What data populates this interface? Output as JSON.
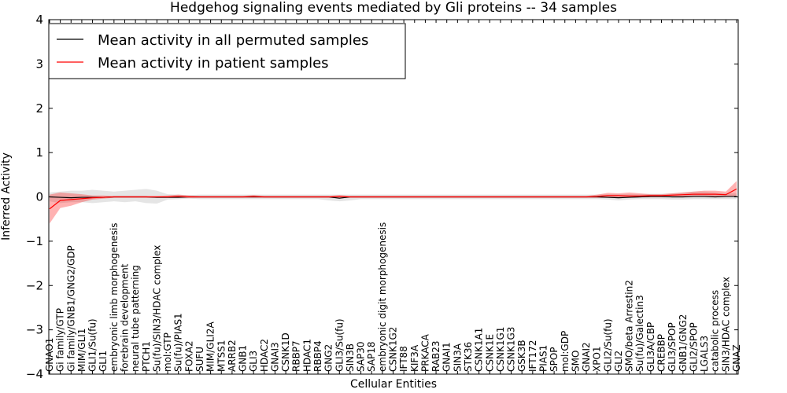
{
  "chart_data": {
    "type": "line",
    "title": "Hedgehog signaling events mediated by Gli proteins -- 34 samples",
    "xlabel": "Cellular Entities",
    "ylabel": "Inferred Activity",
    "ylim": [
      -4,
      4
    ],
    "yticks": [
      "4",
      "3",
      "2",
      "1",
      "0",
      "−1",
      "−2",
      "−3",
      "−4"
    ],
    "ytick_values": [
      4,
      3,
      2,
      1,
      0,
      -1,
      -2,
      -3,
      -4
    ],
    "legend_position": "top-left",
    "categories": [
      "GNAO1",
      "Gi family/GTP",
      "Gi family/GNB1/GNG2/GDP",
      "MIM/GLI1",
      "GLI1/Su(fu)",
      "GLI1",
      "embryonic limb morphogenesis",
      "forebrain development",
      "neural tube patterning",
      "PTCH1",
      "Su(fu)/SIN3/HDAC complex",
      "mol:GTP",
      "Su(fu)/PIAS1",
      "FOXA2",
      "SUFU",
      "MIM/GLI2A",
      "MTSS1",
      "ARRB2",
      "GNB1",
      "GLI3",
      "HDAC2",
      "GNAI3",
      "CSNK1D",
      "RBBP7",
      "HDAC1",
      "RBBP4",
      "GNG2",
      "GLI3/Su(fu)",
      "SIN3B",
      "SAP30",
      "SAP18",
      "embryonic digit morphogenesis",
      "CSNK1G2",
      "IFT88",
      "KIF3A",
      "PRKACA",
      "RAB23",
      "GNAI1",
      "SIN3A",
      "STK36",
      "CSNK1A1",
      "CSNK1E",
      "CSNK1G1",
      "CSNK1G3",
      "GSK3B",
      "IFT172",
      "PIAS1",
      "SPOP",
      "mol:GDP",
      "SMO",
      "GNAI2",
      "XPO1",
      "GLI2/Su(fu)",
      "GLI2",
      "SMO/beta Arrestin2",
      "Su(fu)/Galectin3",
      "GLI3A/CBP",
      "CREBBP",
      "GLI3/SPOP",
      "GNB1/GNG2",
      "GLI2/SPOP",
      "LGALS3",
      "catabolic process",
      "SIN3/HDAC complex",
      "GNAZ"
    ],
    "series": [
      {
        "name": "Mean activity in all permuted samples",
        "color": "#000000",
        "values": [
          0.0,
          -0.01,
          -0.02,
          -0.01,
          -0.01,
          -0.01,
          0.0,
          0.0,
          0.0,
          0.0,
          -0.01,
          -0.01,
          -0.01,
          0.0,
          0.0,
          0.0,
          0.0,
          0.0,
          0.0,
          0.0,
          0.0,
          0.0,
          0.0,
          0.0,
          0.0,
          0.0,
          0.0,
          -0.03,
          0.0,
          0.0,
          0.0,
          0.0,
          0.0,
          0.0,
          0.0,
          0.0,
          0.0,
          0.0,
          0.0,
          0.0,
          0.0,
          0.0,
          0.0,
          0.0,
          0.0,
          0.0,
          0.0,
          0.0,
          0.0,
          0.0,
          0.0,
          0.0,
          -0.01,
          -0.02,
          -0.01,
          0.0,
          0.01,
          0.01,
          0.0,
          0.0,
          0.01,
          0.01,
          0.0,
          0.01,
          0.01
        ],
        "band_lower": [
          -0.1,
          -0.14,
          -0.12,
          -0.12,
          -0.14,
          -0.12,
          -0.1,
          -0.12,
          -0.1,
          -0.14,
          -0.15,
          -0.06,
          -0.05,
          -0.04,
          -0.05,
          -0.05,
          -0.05,
          -0.05,
          -0.05,
          -0.05,
          -0.05,
          -0.05,
          -0.05,
          -0.05,
          -0.05,
          -0.05,
          -0.08,
          -0.1,
          -0.08,
          -0.05,
          -0.05,
          -0.05,
          -0.05,
          -0.05,
          -0.05,
          -0.05,
          -0.05,
          -0.05,
          -0.05,
          -0.05,
          -0.05,
          -0.05,
          -0.05,
          -0.05,
          -0.05,
          -0.05,
          -0.05,
          -0.05,
          -0.05,
          -0.05,
          -0.05,
          -0.05,
          -0.06,
          -0.08,
          -0.06,
          -0.05,
          -0.05,
          -0.05,
          -0.06,
          -0.06,
          -0.05,
          -0.05,
          -0.05,
          -0.05,
          -0.05
        ],
        "band_upper": [
          0.1,
          0.12,
          0.14,
          0.14,
          0.16,
          0.14,
          0.12,
          0.14,
          0.16,
          0.18,
          0.14,
          0.06,
          0.05,
          0.04,
          0.05,
          0.05,
          0.05,
          0.05,
          0.05,
          0.05,
          0.05,
          0.05,
          0.05,
          0.05,
          0.05,
          0.05,
          0.05,
          0.05,
          0.05,
          0.05,
          0.05,
          0.05,
          0.05,
          0.05,
          0.05,
          0.05,
          0.05,
          0.05,
          0.05,
          0.05,
          0.05,
          0.05,
          0.05,
          0.05,
          0.05,
          0.05,
          0.05,
          0.05,
          0.05,
          0.05,
          0.05,
          0.05,
          0.06,
          0.06,
          0.06,
          0.06,
          0.07,
          0.07,
          0.08,
          0.1,
          0.12,
          0.12,
          0.1,
          0.08,
          0.08
        ]
      },
      {
        "name": "Mean activity in patient samples",
        "color": "#ff0000",
        "values": [
          -0.27,
          -0.08,
          -0.06,
          -0.04,
          -0.02,
          -0.01,
          0.0,
          0.0,
          0.0,
          0.0,
          0.0,
          0.0,
          0.01,
          0.0,
          0.0,
          0.0,
          0.0,
          0.0,
          0.0,
          0.01,
          0.0,
          0.0,
          0.0,
          0.0,
          0.0,
          0.0,
          0.0,
          0.01,
          0.0,
          0.0,
          0.0,
          0.0,
          0.0,
          0.0,
          0.0,
          0.0,
          0.0,
          0.0,
          0.0,
          0.0,
          0.0,
          0.0,
          0.0,
          0.0,
          0.0,
          0.0,
          0.0,
          0.0,
          0.0,
          0.0,
          0.0,
          0.01,
          0.03,
          0.03,
          0.02,
          0.02,
          0.03,
          0.03,
          0.04,
          0.05,
          0.06,
          0.06,
          0.06,
          0.05,
          0.18
        ],
        "band_lower": [
          -0.6,
          -0.25,
          -0.2,
          -0.12,
          -0.06,
          -0.04,
          -0.02,
          -0.02,
          -0.02,
          -0.02,
          -0.02,
          -0.02,
          -0.02,
          -0.02,
          -0.02,
          -0.02,
          -0.02,
          -0.02,
          -0.02,
          -0.02,
          -0.02,
          -0.02,
          -0.02,
          -0.02,
          -0.02,
          -0.02,
          -0.02,
          -0.02,
          -0.02,
          -0.02,
          -0.02,
          -0.02,
          -0.02,
          -0.02,
          -0.02,
          -0.02,
          -0.02,
          -0.02,
          -0.02,
          -0.02,
          -0.02,
          -0.02,
          -0.02,
          -0.02,
          -0.02,
          -0.02,
          -0.02,
          -0.02,
          -0.02,
          -0.02,
          -0.02,
          -0.02,
          -0.02,
          -0.02,
          -0.02,
          -0.01,
          -0.01,
          -0.01,
          0.0,
          0.0,
          0.0,
          0.0,
          0.0,
          0.0,
          0.02
        ],
        "band_upper": [
          0.05,
          0.1,
          0.08,
          0.06,
          0.03,
          0.03,
          0.02,
          0.02,
          0.02,
          0.02,
          0.02,
          0.03,
          0.05,
          0.03,
          0.02,
          0.02,
          0.02,
          0.02,
          0.02,
          0.04,
          0.02,
          0.02,
          0.02,
          0.02,
          0.02,
          0.02,
          0.02,
          0.04,
          0.02,
          0.02,
          0.02,
          0.02,
          0.02,
          0.02,
          0.02,
          0.02,
          0.02,
          0.02,
          0.02,
          0.02,
          0.02,
          0.02,
          0.02,
          0.02,
          0.02,
          0.02,
          0.02,
          0.02,
          0.02,
          0.02,
          0.02,
          0.05,
          0.09,
          0.08,
          0.1,
          0.08,
          0.06,
          0.06,
          0.08,
          0.1,
          0.12,
          0.14,
          0.14,
          0.12,
          0.36
        ]
      }
    ]
  }
}
